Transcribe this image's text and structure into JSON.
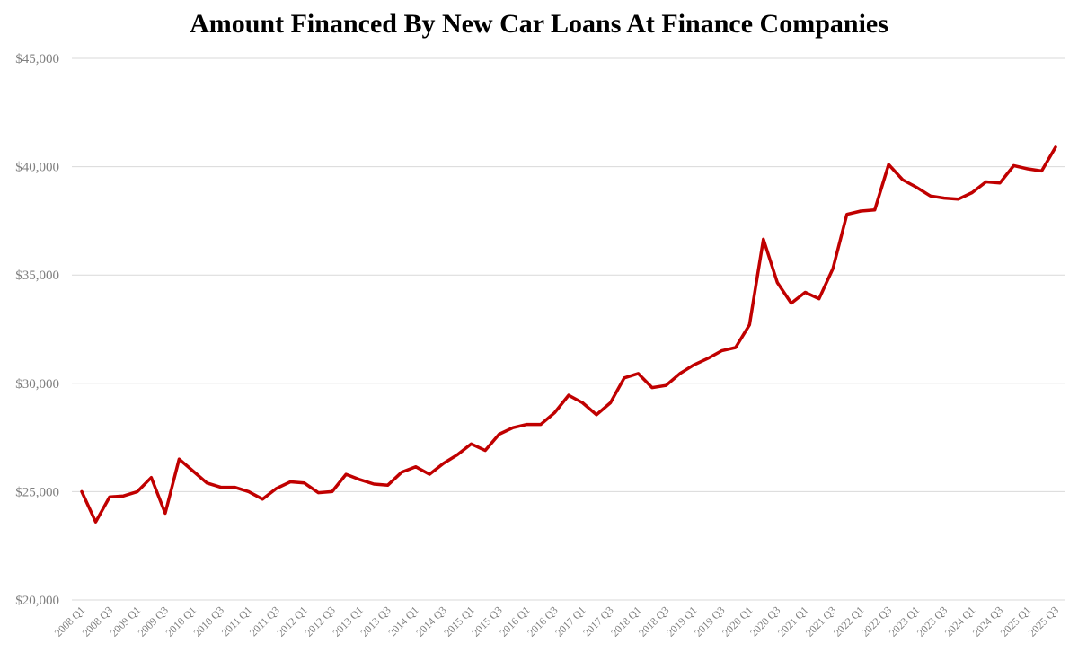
{
  "chart_data": {
    "type": "line",
    "title": "Amount Financed By New Car Loans At Finance Companies",
    "xlabel": "",
    "ylabel": "",
    "ylim": [
      20000,
      45000
    ],
    "grid": "horizontal",
    "line_color": "#c00000",
    "x": [
      "2008 Q1",
      "2008 Q2",
      "2008 Q3",
      "2008 Q4",
      "2009 Q1",
      "2009 Q2",
      "2009 Q3",
      "2009 Q4",
      "2010 Q1",
      "2010 Q2",
      "2010 Q3",
      "2010 Q4",
      "2011 Q1",
      "2011 Q2",
      "2011 Q3",
      "2011 Q4",
      "2012 Q1",
      "2012 Q2",
      "2012 Q3",
      "2012 Q4",
      "2013 Q1",
      "2013 Q2",
      "2013 Q3",
      "2013 Q4",
      "2014 Q1",
      "2014 Q2",
      "2014 Q3",
      "2014 Q4",
      "2015 Q1",
      "2015 Q2",
      "2015 Q3",
      "2015 Q4",
      "2016 Q1",
      "2016 Q2",
      "2016 Q3",
      "2016 Q4",
      "2017 Q1",
      "2017 Q2",
      "2017 Q3",
      "2017 Q4",
      "2018 Q1",
      "2018 Q2",
      "2018 Q3",
      "2018 Q4",
      "2019 Q1",
      "2019 Q2",
      "2019 Q3",
      "2019 Q4",
      "2020 Q1",
      "2020 Q2",
      "2020 Q3",
      "2020 Q4",
      "2021 Q1",
      "2021 Q2",
      "2021 Q3",
      "2021 Q4",
      "2022 Q1",
      "2022 Q2",
      "2022 Q3",
      "2022 Q4",
      "2023 Q1",
      "2023 Q2",
      "2023 Q3",
      "2023 Q4",
      "2024 Q1",
      "2024 Q2",
      "2024 Q3",
      "2024 Q4",
      "2025 Q1",
      "2025 Q2",
      "2025 Q3"
    ],
    "x_tick_labels": [
      "2008 Q1",
      "2008 Q3",
      "2009 Q1",
      "2009 Q3",
      "2010 Q1",
      "2010 Q3",
      "2011 Q1",
      "2011 Q3",
      "2012 Q1",
      "2012 Q3",
      "2013 Q1",
      "2013 Q3",
      "2014 Q1",
      "2014 Q3",
      "2015 Q1",
      "2015 Q3",
      "2016 Q1",
      "2016 Q3",
      "2017 Q1",
      "2017 Q3",
      "2018 Q1",
      "2018 Q3",
      "2019 Q1",
      "2019 Q3",
      "2020 Q1",
      "2020 Q3",
      "2021 Q1",
      "2021 Q3",
      "2022 Q1",
      "2022 Q3",
      "2023 Q1",
      "2023 Q3",
      "2024 Q1",
      "2024 Q3",
      "2025 Q1",
      "2025 Q3"
    ],
    "y_tick_labels": [
      "$20,000",
      "$25,000",
      "$30,000",
      "$35,000",
      "$40,000",
      "$45,000"
    ],
    "y_tick_values": [
      20000,
      25000,
      30000,
      35000,
      40000,
      45000
    ],
    "values": [
      25000,
      23600,
      24750,
      24800,
      25000,
      25650,
      24000,
      26500,
      25950,
      25400,
      25200,
      25200,
      25000,
      24650,
      25150,
      25450,
      25400,
      24950,
      25000,
      25800,
      25550,
      25350,
      25300,
      25900,
      26150,
      25800,
      26300,
      26700,
      27200,
      26900,
      27650,
      27950,
      28100,
      28100,
      28650,
      29450,
      29100,
      28550,
      29100,
      30250,
      30450,
      29800,
      29900,
      30450,
      30850,
      31150,
      31500,
      31650,
      32700,
      36650,
      34650,
      33700,
      34200,
      33900,
      35300,
      37800,
      37950,
      38000,
      40100,
      39400,
      39050,
      38650,
      38550,
      38500,
      38800,
      39300,
      39250,
      40050,
      39900,
      39800,
      40900
    ]
  }
}
